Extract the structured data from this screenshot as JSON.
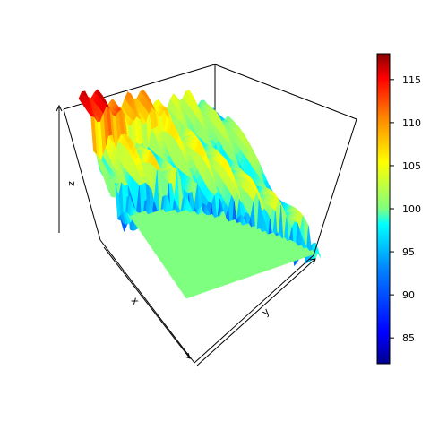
{
  "chart_data": {
    "type": "surface-3d",
    "axes": {
      "x_label": "x",
      "y_label": "y",
      "z_label": "z"
    },
    "colorbar": {
      "min": 82,
      "max": 118,
      "ticks": [
        85,
        90,
        95,
        100,
        105,
        110,
        115
      ],
      "tick_labels": [
        "85",
        "90",
        "95",
        "100",
        "105",
        "110",
        "115"
      ],
      "colors": [
        "#00008b",
        "#0000ff",
        "#0080ff",
        "#00ffff",
        "#7fff7f",
        "#ffff00",
        "#ff8000",
        "#ff0000",
        "#8b0000"
      ]
    },
    "surface": {
      "base_level": 100,
      "description_values": {
        "flat_region": 100,
        "back_ridge_peak": 117,
        "front_trough_min": 83
      }
    }
  }
}
